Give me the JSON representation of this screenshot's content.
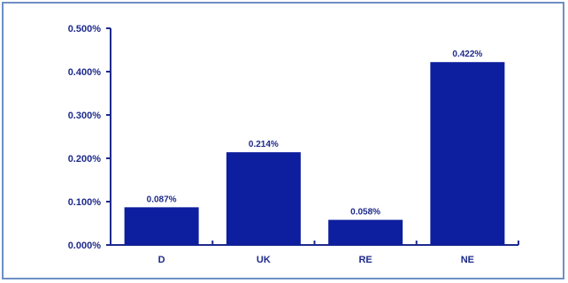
{
  "chart_data": {
    "type": "bar",
    "title": "",
    "xlabel": "",
    "ylabel": "",
    "categories": [
      "D",
      "UK",
      "RE",
      "NE"
    ],
    "values": [
      0.087,
      0.214,
      0.058,
      0.422
    ],
    "data_labels": [
      "0.087%",
      "0.214%",
      "0.058%",
      "0.422%"
    ],
    "ylim": [
      0,
      0.5
    ],
    "yticks": [
      0,
      0.1,
      0.2,
      0.3,
      0.4,
      0.5
    ],
    "ytick_labels": [
      "0.000%",
      "0.100%",
      "0.200%",
      "0.300%",
      "0.400%",
      "0.500%"
    ],
    "grid": false,
    "legend": "none",
    "colors": {
      "bar": "#0d1e9e",
      "axis": "#1d2a8c",
      "text": "#1d2a8c",
      "border": "#6f8fc6"
    }
  }
}
